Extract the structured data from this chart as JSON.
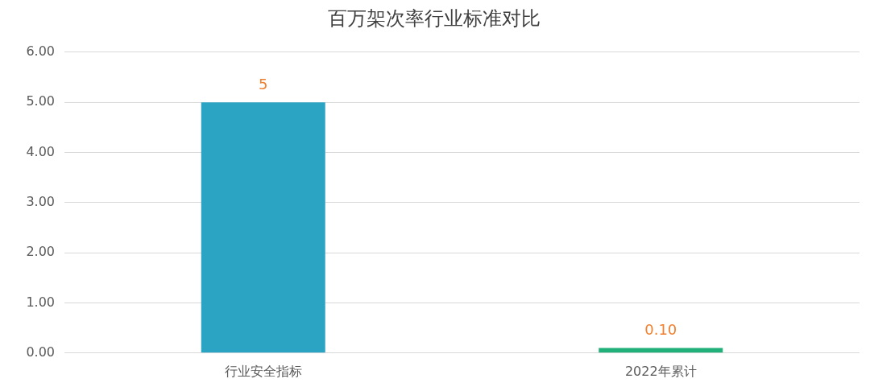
{
  "chart_data": {
    "type": "bar",
    "title": "百万架次率行业标准对比",
    "categories": [
      "行业安全指标",
      "2022年累计"
    ],
    "values": [
      5,
      0.1
    ],
    "value_labels": [
      "5",
      "0.10"
    ],
    "colors": [
      "#2ba4c4",
      "#22b07a"
    ],
    "ylim": [
      0,
      6
    ],
    "yticks": [
      {
        "value": 0,
        "label": "0.00"
      },
      {
        "value": 1,
        "label": "1.00"
      },
      {
        "value": 2,
        "label": "2.00"
      },
      {
        "value": 3,
        "label": "3.00"
      },
      {
        "value": 4,
        "label": "4.00"
      },
      {
        "value": 5,
        "label": "5.00"
      },
      {
        "value": 6,
        "label": "6.00"
      }
    ],
    "grid": "y",
    "legend": false
  }
}
